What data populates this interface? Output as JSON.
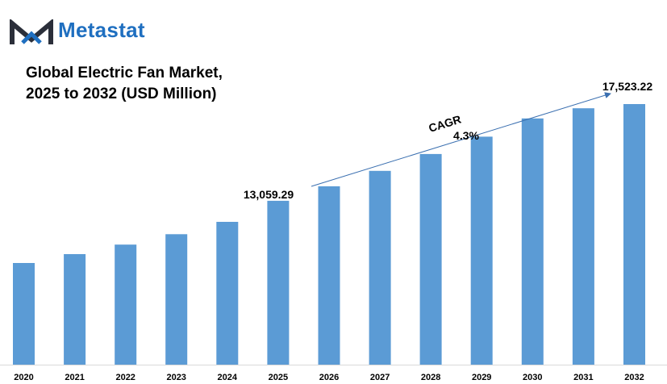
{
  "brand": {
    "name": "Metastat",
    "colors": {
      "dark": "#2b2f3a",
      "blue": "#1f6fc0"
    }
  },
  "chart_data": {
    "type": "bar",
    "title_lines": [
      "Global Electric Fan Market,",
      "2025 to 2032 (USD Million)"
    ],
    "xlabel": "",
    "ylabel": "",
    "categories": [
      "2020",
      "2021",
      "2022",
      "2023",
      "2024",
      "2025",
      "2026",
      "2027",
      "2028",
      "2029",
      "2030",
      "2031",
      "2032"
    ],
    "values": [
      10190,
      10600,
      11040,
      11520,
      12090,
      13059.29,
      13730,
      14440,
      15220,
      16020,
      16860,
      17330,
      17523.22
    ],
    "bar_color": "#5b9bd5",
    "grid": false,
    "annotations": {
      "start_label": "13,059.29",
      "end_label": "17,523.22",
      "cagr_label": "CAGR",
      "cagr_value": "4.3%"
    }
  }
}
